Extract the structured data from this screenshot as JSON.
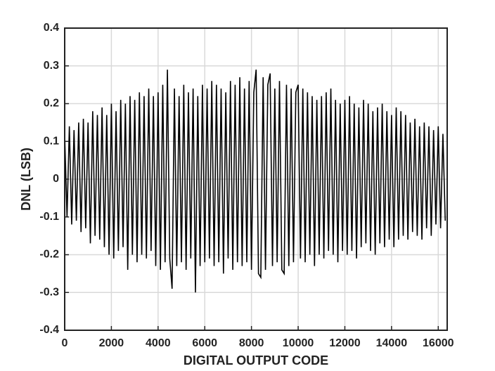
{
  "chart_data": {
    "type": "line",
    "xlabel": "DIGITAL OUTPUT CODE",
    "ylabel": "DNL (LSB)",
    "xlim": [
      0,
      16383
    ],
    "ylim": [
      -0.4,
      0.4
    ],
    "xticks": [
      0,
      2000,
      4000,
      6000,
      8000,
      10000,
      12000,
      14000,
      16000
    ],
    "yticks": [
      -0.4,
      -0.3,
      -0.2,
      -0.1,
      0,
      0.1,
      0.2,
      0.3,
      0.4
    ],
    "grid": true,
    "series": [
      {
        "color": "#000000",
        "x": [
          0,
          100,
          200,
          300,
          400,
          500,
          600,
          700,
          800,
          900,
          1000,
          1100,
          1200,
          1300,
          1400,
          1500,
          1600,
          1700,
          1800,
          1900,
          2000,
          2100,
          2200,
          2300,
          2400,
          2500,
          2600,
          2700,
          2800,
          2900,
          3000,
          3100,
          3200,
          3300,
          3400,
          3500,
          3600,
          3700,
          3800,
          3900,
          4000,
          4100,
          4200,
          4300,
          4400,
          4500,
          4600,
          4700,
          4800,
          4900,
          5000,
          5100,
          5200,
          5300,
          5400,
          5500,
          5600,
          5700,
          5800,
          5900,
          6000,
          6100,
          6200,
          6300,
          6400,
          6500,
          6600,
          6700,
          6800,
          6900,
          7000,
          7100,
          7200,
          7300,
          7400,
          7500,
          7600,
          7700,
          7800,
          7900,
          8000,
          8100,
          8200,
          8300,
          8400,
          8500,
          8600,
          8700,
          8800,
          8900,
          9000,
          9100,
          9200,
          9300,
          9400,
          9500,
          9600,
          9700,
          9800,
          9900,
          10000,
          10100,
          10200,
          10300,
          10400,
          10500,
          10600,
          10700,
          10800,
          10900,
          11000,
          11100,
          11200,
          11300,
          11400,
          11500,
          11600,
          11700,
          11800,
          11900,
          12000,
          12100,
          12200,
          12300,
          12400,
          12500,
          12600,
          12700,
          12800,
          12900,
          13000,
          13100,
          13200,
          13300,
          13400,
          13500,
          13600,
          13700,
          13800,
          13900,
          14000,
          14100,
          14200,
          14300,
          14400,
          14500,
          14600,
          14700,
          14800,
          14900,
          15000,
          15100,
          15200,
          15300,
          15400,
          15500,
          15600,
          15700,
          15800,
          15900,
          16000,
          16100,
          16200,
          16300
        ],
        "values": [
          0.12,
          -0.1,
          0.14,
          -0.12,
          0.13,
          -0.11,
          0.15,
          -0.14,
          0.16,
          -0.13,
          0.15,
          -0.17,
          0.18,
          -0.15,
          0.17,
          -0.16,
          0.19,
          -0.18,
          0.17,
          -0.2,
          0.2,
          -0.21,
          0.18,
          -0.19,
          0.21,
          -0.18,
          0.2,
          -0.24,
          0.22,
          -0.2,
          0.21,
          -0.22,
          0.23,
          -0.2,
          0.22,
          -0.21,
          0.24,
          -0.19,
          0.22,
          -0.23,
          0.23,
          -0.24,
          0.25,
          -0.22,
          0.29,
          -0.21,
          -0.29,
          0.24,
          -0.23,
          0.22,
          -0.22,
          0.25,
          -0.24,
          0.23,
          -0.21,
          0.24,
          -0.3,
          0.22,
          -0.23,
          0.25,
          -0.22,
          0.24,
          -0.21,
          0.26,
          -0.23,
          0.25,
          -0.22,
          0.24,
          -0.25,
          0.23,
          -0.21,
          0.26,
          -0.24,
          0.25,
          -0.22,
          0.27,
          -0.23,
          0.24,
          -0.22,
          0.26,
          -0.24,
          0.23,
          0.29,
          -0.25,
          -0.26,
          0.27,
          -0.24,
          0.25,
          0.28,
          -0.23,
          0.24,
          -0.22,
          0.26,
          -0.24,
          -0.25,
          0.25,
          -0.23,
          0.24,
          -0.22,
          0.23,
          0.25,
          -0.21,
          0.24,
          -0.22,
          0.23,
          -0.2,
          0.22,
          -0.23,
          0.21,
          -0.2,
          0.22,
          -0.21,
          0.23,
          -0.19,
          0.24,
          -0.2,
          0.21,
          -0.22,
          0.2,
          -0.19,
          0.21,
          -0.2,
          0.22,
          -0.19,
          0.2,
          -0.21,
          0.19,
          -0.18,
          0.21,
          -0.17,
          0.2,
          -0.19,
          0.18,
          -0.2,
          0.19,
          -0.17,
          0.2,
          -0.18,
          0.18,
          -0.16,
          0.17,
          -0.18,
          0.19,
          -0.16,
          0.18,
          -0.15,
          0.17,
          -0.16,
          0.15,
          -0.14,
          0.16,
          -0.15,
          0.14,
          -0.16,
          0.15,
          -0.13,
          0.14,
          -0.15,
          0.13,
          -0.12,
          0.14,
          -0.13,
          0.12,
          -0.11
        ]
      }
    ]
  }
}
